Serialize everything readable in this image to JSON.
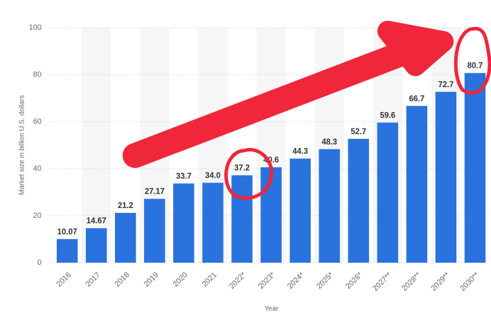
{
  "chart_data": {
    "type": "bar",
    "x_label": "Year",
    "y_label": "Market size in billion U.S. dollars",
    "categories": [
      "2016",
      "2017",
      "2018",
      "2019",
      "2020",
      "2021",
      "2022*",
      "2023*",
      "2024*",
      "2025*",
      "2026*",
      "2027**",
      "2028**",
      "2029**",
      "2030**"
    ],
    "values": [
      10.07,
      14.67,
      21.2,
      27.17,
      33.7,
      34.0,
      37.2,
      40.6,
      44.3,
      48.3,
      52.7,
      59.6,
      66.7,
      72.7,
      80.7
    ],
    "value_labels": [
      "10.07",
      "14.67",
      "21.2",
      "27.17",
      "33.7",
      "34.0",
      "37.2",
      "40.6",
      "44.3",
      "48.3",
      "52.7",
      "59.6",
      "66.7",
      "72.7",
      "80.7"
    ],
    "color": "#2a72de",
    "ylim": [
      0,
      100
    ],
    "yticks": [
      0,
      20,
      40,
      60,
      80,
      100
    ],
    "grid": true
  }
}
